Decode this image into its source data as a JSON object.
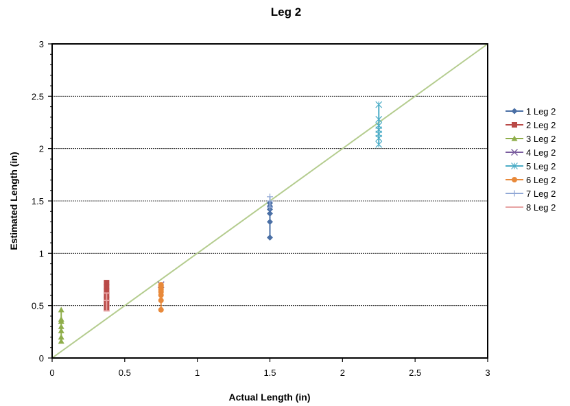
{
  "chart_data": {
    "type": "scatter",
    "title": "Leg 2",
    "xlabel": "Actual Length (in)",
    "ylabel": "Estimated Length (in)",
    "xlim": [
      0,
      3
    ],
    "ylim": [
      0,
      3
    ],
    "xticks": [
      "0",
      "0.5",
      "1",
      "1.5",
      "2",
      "2.5",
      "3"
    ],
    "yticks": [
      "0",
      "0.5",
      "1",
      "1.5",
      "2",
      "2.5",
      "3"
    ],
    "grid": "horizontal major gridlines",
    "legend_position": "right",
    "reference_line": {
      "x": [
        0,
        3
      ],
      "y": [
        0,
        3
      ],
      "color": "#b4cc8e"
    },
    "series": [
      {
        "name": "1 Leg 2",
        "color": "#4a6fa5",
        "marker": "diamond",
        "x": [
          1.5,
          1.5,
          1.5,
          1.5,
          1.5,
          1.5
        ],
        "y": [
          1.15,
          1.3,
          1.38,
          1.42,
          1.45,
          1.48
        ]
      },
      {
        "name": "2 Leg 2",
        "color": "#b94a48",
        "marker": "square",
        "x": [
          0.375,
          0.375,
          0.375,
          0.375,
          0.375,
          0.375,
          0.375
        ],
        "y": [
          0.48,
          0.52,
          0.56,
          0.6,
          0.64,
          0.68,
          0.72
        ]
      },
      {
        "name": "3 Leg 2",
        "color": "#8fae4b",
        "marker": "triangle",
        "x": [
          0.0625,
          0.0625,
          0.0625,
          0.0625,
          0.0625,
          0.0625,
          0.0625
        ],
        "y": [
          0.16,
          0.2,
          0.26,
          0.3,
          0.35,
          0.37,
          0.46
        ]
      },
      {
        "name": "4 Leg 2",
        "color": "#7a5c9e",
        "marker": "x",
        "x": [
          0.75
        ],
        "y": [
          0.7
        ]
      },
      {
        "name": "5 Leg 2",
        "color": "#4bacc6",
        "marker": "asterisk",
        "x": [
          2.25,
          2.25,
          2.25,
          2.25,
          2.25,
          2.25,
          2.25
        ],
        "y": [
          2.04,
          2.1,
          2.14,
          2.18,
          2.22,
          2.28,
          2.42
        ]
      },
      {
        "name": "6 Leg 2",
        "color": "#e8893a",
        "marker": "circle",
        "x": [
          0.75,
          0.75,
          0.75,
          0.75,
          0.75,
          0.75,
          0.75,
          0.75
        ],
        "y": [
          0.46,
          0.55,
          0.6,
          0.63,
          0.65,
          0.67,
          0.69,
          0.7
        ]
      },
      {
        "name": "7 Leg 2",
        "color": "#92a9d6",
        "marker": "plus",
        "x": [
          1.5,
          1.5,
          1.5
        ],
        "y": [
          1.44,
          1.5,
          1.54
        ]
      },
      {
        "name": "8 Leg 2",
        "color": "#e7a3a3",
        "marker": "dash",
        "x": [
          0.375,
          0.375,
          0.375
        ],
        "y": [
          0.45,
          0.55,
          0.62
        ]
      }
    ]
  }
}
